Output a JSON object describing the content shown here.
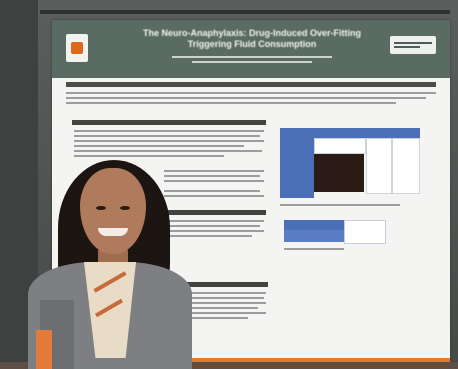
{
  "scene": {
    "description_free": true
  },
  "poster": {
    "title": "The Neuro-Anaphylaxis: Drug-Induced Over-Fitting Triggering Fluid Consumption"
  },
  "colors": {
    "poster_header": "#5a6b63",
    "table_accent": "#4a6fb6",
    "floor_strip": "#e77a25",
    "wall": "#4f5250"
  }
}
